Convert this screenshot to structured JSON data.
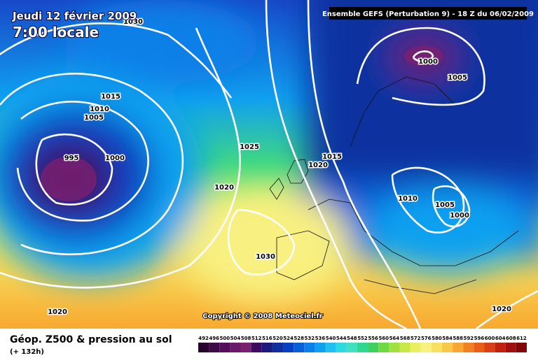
{
  "header": {
    "date": "Jeudi 12 février 2009",
    "time": "7:00 locale",
    "run": "Ensemble GEFS (Perturbation 9)  -  18 Z du 06/02/2009"
  },
  "isobar_labels": [
    "1030",
    "1015",
    "1010",
    "1005",
    "995",
    "1000",
    "1025",
    "1020",
    "1030",
    "1020",
    "1015",
    "1020",
    "1000",
    "1005",
    "1010",
    "1005",
    "1000",
    "1020"
  ],
  "copyright": "Copyright © 2008 Meteociel.fr",
  "footer": {
    "title": "Géop. Z500 & pression au sol",
    "lead": "(+ 132h)"
  },
  "scale": {
    "labels": [
      492,
      496,
      500,
      504,
      508,
      512,
      516,
      520,
      524,
      528,
      532,
      536,
      540,
      544,
      548,
      552,
      556,
      560,
      564,
      568,
      572,
      576,
      580,
      584,
      588,
      592,
      596,
      600,
      604,
      608,
      612
    ],
    "colors": [
      "#2a0030",
      "#3d0a45",
      "#550f5a",
      "#6a1a6a",
      "#7a2070",
      "#3a0d60",
      "#1a1a80",
      "#1030a0",
      "#0a40c0",
      "#0860d8",
      "#0a80e8",
      "#10a0f0",
      "#20c0f0",
      "#30d8e0",
      "#40e0c0",
      "#30d890",
      "#40d060",
      "#70d840",
      "#a0e040",
      "#c8e848",
      "#e8f060",
      "#f8f080",
      "#f8e060",
      "#f8c848",
      "#f8a830",
      "#f08020",
      "#e86018",
      "#d84018",
      "#c02010",
      "#a01010",
      "#800808"
    ]
  }
}
